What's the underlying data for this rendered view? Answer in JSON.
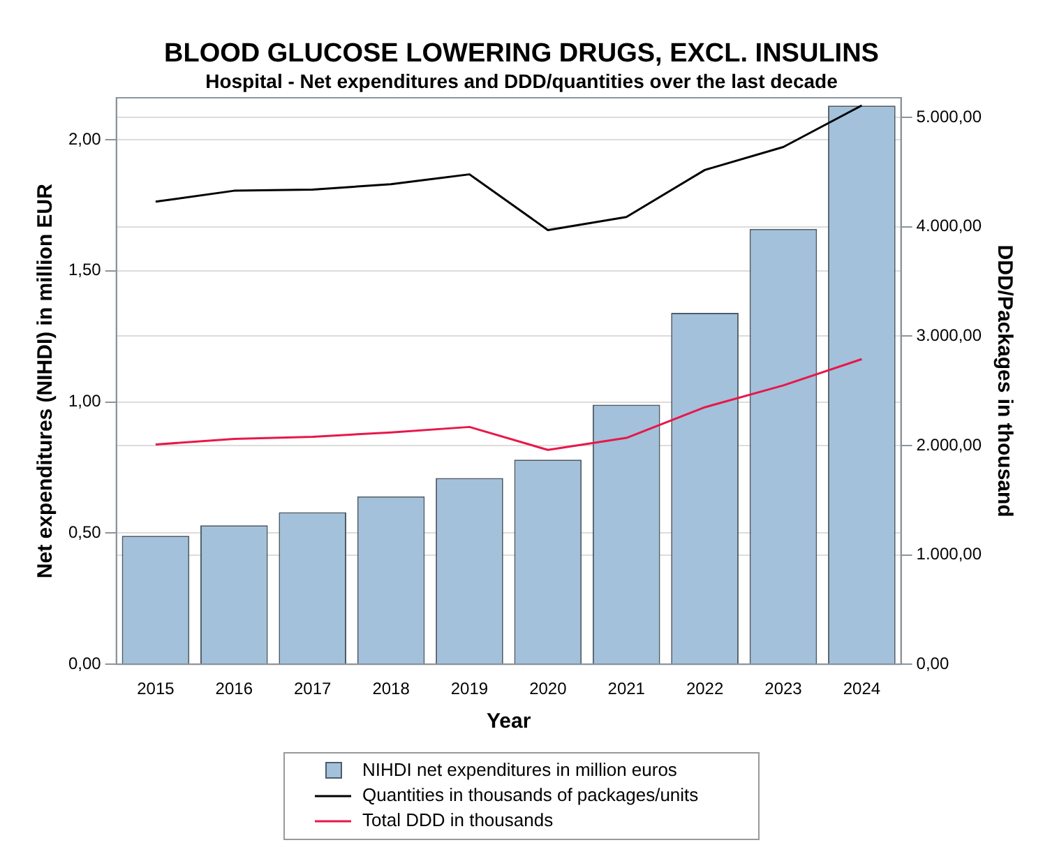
{
  "chart_data": {
    "type": "bar",
    "title": "BLOOD GLUCOSE LOWERING DRUGS, EXCL. INSULINS",
    "subtitle": "Hospital - Net expenditures and DDD/quantities over the last decade",
    "xlabel": "Year",
    "ylabel": "Net expenditures (NIHDI) in million EUR",
    "y2label": "DDD/Packages in thousand",
    "categories": [
      "2015",
      "2016",
      "2017",
      "2018",
      "2019",
      "2020",
      "2021",
      "2022",
      "2023",
      "2024"
    ],
    "series": [
      {
        "name": "NIHDI net expenditures in million euros",
        "color": "#a3c1da",
        "values": [
          0.49,
          0.53,
          0.58,
          0.64,
          0.71,
          0.78,
          0.99,
          1.34,
          1.66,
          2.13
        ]
      },
      {
        "name": "Quantities in thousands of packages/units",
        "type": "line",
        "axis": "y2",
        "color": "#000000",
        "values": [
          4230,
          4330,
          4340,
          4390,
          4480,
          3970,
          4090,
          4520,
          4730,
          5110
        ]
      },
      {
        "name": "Total DDD in thousands",
        "type": "line",
        "axis": "y2",
        "color": "#e8174a",
        "values": [
          2010,
          2060,
          2080,
          2120,
          2170,
          1960,
          2070,
          2350,
          2550,
          2790
        ]
      }
    ],
    "ylim": [
      0,
      2.16
    ],
    "yticks": [
      {
        "value": 0,
        "label": "0,00"
      },
      {
        "value": 0.5,
        "label": "0,50"
      },
      {
        "value": 1,
        "label": "1,00"
      },
      {
        "value": 1.5,
        "label": "1,50"
      },
      {
        "value": 2,
        "label": "2,00"
      }
    ],
    "y2lim": [
      0,
      5180
    ],
    "y2ticks": [
      {
        "value": 0,
        "label": "0,00"
      },
      {
        "value": 1000,
        "label": "1.000,00"
      },
      {
        "value": 2000,
        "label": "2.000,00"
      },
      {
        "value": 3000,
        "label": "3.000,00"
      },
      {
        "value": 4000,
        "label": "4.000,00"
      },
      {
        "value": 5000,
        "label": "5.000,00"
      }
    ],
    "grid": true,
    "legend": "bottom",
    "marker": "none"
  }
}
